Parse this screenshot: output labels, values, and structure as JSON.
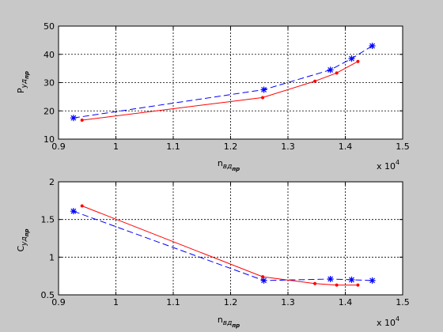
{
  "chart_data": [
    {
      "type": "line",
      "title": "",
      "ylabel_main": "P",
      "ylabel_sub": "уд",
      "ylabel_subsub": "пр",
      "xlabel_main": "n",
      "xlabel_sub": "вд",
      "xlabel_subsub": "пр",
      "x_exponent_base": "x 10",
      "x_exponent_power": "4",
      "xlim": [
        0.9,
        1.5
      ],
      "ylim": [
        10,
        50
      ],
      "xticks": [
        0.9,
        1.0,
        1.1,
        1.2,
        1.3,
        1.4,
        1.5
      ],
      "xtick_labels": [
        "0.9",
        "1",
        "1.1",
        "1.2",
        "1.3",
        "1.4",
        "1.5"
      ],
      "yticks": [
        10,
        20,
        30,
        40,
        50
      ],
      "ytick_labels": [
        "10",
        "20",
        "30",
        "40",
        "50"
      ],
      "grid": true,
      "series": [
        {
          "color": "#0000ff",
          "line_style": "dashed",
          "marker": "star",
          "x": [
            0.926,
            1.258,
            1.374,
            1.411,
            1.447
          ],
          "y": [
            17.5,
            27.5,
            34.5,
            38.5,
            43.0
          ]
        },
        {
          "color": "#ff0000",
          "line_style": "solid",
          "marker": "dot",
          "x": [
            0.941,
            1.256,
            1.347,
            1.385,
            1.422
          ],
          "y": [
            16.7,
            24.7,
            30.5,
            33.4,
            37.5
          ]
        }
      ]
    },
    {
      "type": "line",
      "title": "",
      "ylabel_main": "C",
      "ylabel_sub": "уд",
      "ylabel_subsub": "пр",
      "xlabel_main": "n",
      "xlabel_sub": "вд",
      "xlabel_subsub": "пр",
      "x_exponent_base": "x 10",
      "x_exponent_power": "4",
      "xlim": [
        0.9,
        1.5
      ],
      "ylim": [
        0.5,
        2.0
      ],
      "xticks": [
        0.9,
        1.0,
        1.1,
        1.2,
        1.3,
        1.4,
        1.5
      ],
      "xtick_labels": [
        "0.9",
        "1",
        "1.1",
        "1.2",
        "1.3",
        "1.4",
        "1.5"
      ],
      "yticks": [
        0.5,
        1.0,
        1.5,
        2.0
      ],
      "ytick_labels": [
        "0.5",
        "1",
        "1.5",
        "2"
      ],
      "grid": true,
      "series": [
        {
          "color": "#0000ff",
          "line_style": "dashed",
          "marker": "star",
          "x": [
            0.926,
            1.258,
            1.374,
            1.411,
            1.447
          ],
          "y": [
            1.61,
            0.69,
            0.71,
            0.7,
            0.69
          ]
        },
        {
          "color": "#ff0000",
          "line_style": "solid",
          "marker": "dot",
          "x": [
            0.941,
            1.256,
            1.347,
            1.385,
            1.422
          ],
          "y": [
            1.68,
            0.74,
            0.65,
            0.63,
            0.63
          ]
        }
      ]
    }
  ]
}
